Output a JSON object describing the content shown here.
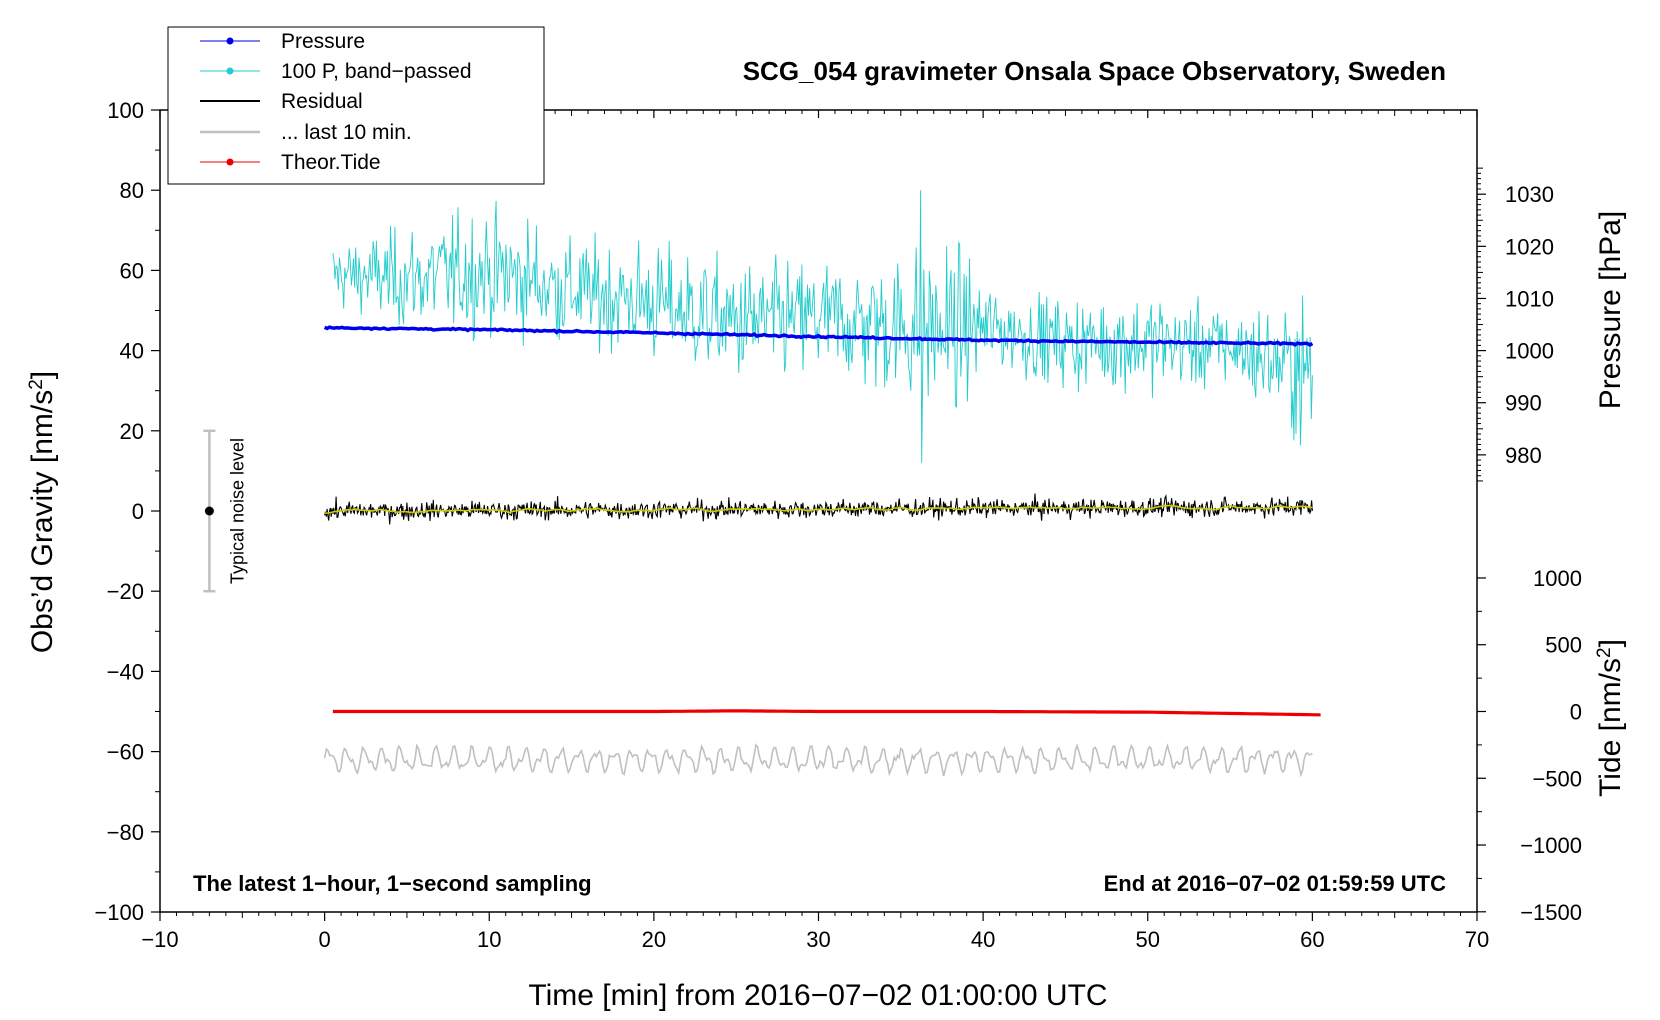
{
  "chart_data": {
    "type": "line",
    "title": "SCG_054 gravimeter Onsala Space Observatory, Sweden",
    "xlabel": "Time [min] from 2016−07−02 01:00:00 UTC",
    "ylabel_left": "Obs’d Gravity [nm/s",
    "ylabel_left_sup": "2",
    "ylabel_left_close": "]",
    "ylabel_right_pressure": "Pressure [hPa]",
    "ylabel_right_tide": "Tide [nm/s",
    "ylabel_right_tide_sup": "2",
    "ylabel_right_tide_close": "]",
    "xlim": [
      -10,
      70
    ],
    "ylim": [
      -100,
      100
    ],
    "x_ticks": [
      "−10",
      "0",
      "10",
      "20",
      "30",
      "40",
      "50",
      "60",
      "70"
    ],
    "x_tick_values": [
      -10,
      0,
      10,
      20,
      30,
      40,
      50,
      60,
      70
    ],
    "y_ticks": [
      "−100",
      "−80",
      "−60",
      "−40",
      "−20",
      "0",
      "20",
      "40",
      "60",
      "80",
      "100"
    ],
    "y_tick_values": [
      -100,
      -80,
      -60,
      -40,
      -20,
      0,
      20,
      40,
      60,
      80,
      100
    ],
    "pressure_axis": {
      "ticks": [
        "980",
        "990",
        "1000",
        "1010",
        "1020",
        "1030"
      ],
      "values": [
        980,
        990,
        1000,
        1010,
        1020,
        1030
      ],
      "anchor_hpa": 1000,
      "anchor_gravity": 40,
      "gravity_per_hpa": 1.3
    },
    "tide_axis": {
      "ticks": [
        "−1500",
        "−1000",
        "−500",
        "0",
        "500",
        "1000"
      ],
      "values": [
        -1500,
        -1000,
        -500,
        0,
        500,
        1000
      ],
      "anchor_tide": 0,
      "anchor_gravity": -50,
      "gravity_per_unit": 0.0333
    },
    "series": [
      {
        "name": "Pressure",
        "color": "#0000ee",
        "x": [
          0.0,
          10.0,
          20.0,
          30.0,
          40.0,
          50.0,
          60.0
        ],
        "values_hpa": [
          1004.4,
          1004.0,
          1003.4,
          1002.7,
          1002.0,
          1001.6,
          1001.3
        ]
      },
      {
        "name": "100 P, band−passed",
        "color": "#22cccc",
        "x": [
          0.5,
          5.0,
          10.0,
          15.0,
          20.0,
          25.0,
          30.0,
          35.0,
          38.0,
          40.0,
          45.0,
          50.0,
          55.0,
          60.0
        ],
        "envelope_min": [
          50,
          44,
          42,
          40,
          36,
          30,
          32,
          26,
          20,
          34,
          30,
          28,
          30,
          14
        ],
        "envelope_max": [
          68,
          72,
          78,
          70,
          68,
          64,
          64,
          66,
          70,
          58,
          54,
          56,
          52,
          54
        ],
        "spike": {
          "x": 36.2,
          "min": 12,
          "max": 80
        }
      },
      {
        "name": "Residual",
        "color": "#000000",
        "x": [
          0.0,
          60.0
        ],
        "values": [
          0,
          1
        ]
      },
      {
        "name": "... last 10 min.",
        "color": "#c0c0c0",
        "x": [
          0.0,
          60.0
        ],
        "values": [
          -62,
          -62
        ]
      },
      {
        "name": "Theor.Tide",
        "color": "#ee0000",
        "x": [
          0.5,
          10.0,
          20.0,
          25.0,
          30.0,
          40.0,
          50.0,
          60.5
        ],
        "values_tide": [
          0,
          0,
          0,
          5,
          0,
          0,
          -5,
          -25
        ]
      }
    ],
    "smoothed_residual_color": "#cccc00",
    "noise_level": {
      "label": "Typical noise level",
      "x": -7,
      "center": 0,
      "half_range": 20
    },
    "annotation_left": "The latest 1−hour, 1−second sampling",
    "annotation_right": "End at 2016−07−02 01:59:59 UTC"
  }
}
